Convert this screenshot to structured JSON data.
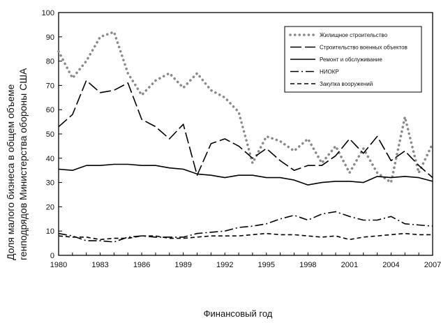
{
  "chart_data": {
    "type": "line",
    "title": "",
    "xlabel": "Финансовый год",
    "ylabel": [
      "Доля малого бизнеса в общем объеме",
      "генподрядов Министерства обороны США"
    ],
    "xlim": [
      1980,
      2007
    ],
    "ylim": [
      0,
      100
    ],
    "x_ticks": [
      "1980",
      "1983",
      "1986",
      "1989",
      "1992",
      "1995",
      "1998",
      "2001",
      "2004",
      "2007"
    ],
    "y_ticks": [
      "0",
      "10",
      "20",
      "30",
      "40",
      "50",
      "60",
      "70",
      "80",
      "90",
      "100"
    ],
    "grid": false,
    "legend_placement": "top-right",
    "x": [
      1980,
      1981,
      1982,
      1983,
      1984,
      1985,
      1986,
      1987,
      1988,
      1989,
      1990,
      1991,
      1992,
      1993,
      1994,
      1995,
      1996,
      1997,
      1998,
      1999,
      2000,
      2001,
      2002,
      2003,
      2004,
      2005,
      2006,
      2007
    ],
    "series": [
      {
        "name": "Жилищное строительство",
        "style": "dotted",
        "values": [
          84,
          73,
          80,
          90,
          92,
          75,
          66,
          72,
          75,
          69,
          75,
          68,
          65,
          59,
          38,
          49,
          47,
          43,
          48,
          38,
          45,
          34,
          44,
          34,
          30,
          57,
          34,
          46
        ]
      },
      {
        "name": "Строительство военных объектов",
        "style": "long-dash",
        "values": [
          53,
          58,
          72,
          67,
          68,
          71,
          56,
          53,
          48,
          54,
          33,
          46,
          48,
          45,
          40,
          44,
          39,
          35,
          37,
          37,
          41,
          48,
          42,
          49,
          39,
          43,
          37,
          32
        ]
      },
      {
        "name": "Ремонт и обслуживание",
        "style": "solid",
        "values": [
          35.5,
          35,
          37,
          37,
          37.5,
          37.5,
          37,
          37,
          36,
          35.5,
          33.5,
          33,
          32,
          33,
          33,
          32,
          32,
          31,
          29,
          30,
          30.5,
          30.5,
          30,
          32.5,
          32,
          32.5,
          32,
          30.5
        ]
      },
      {
        "name": "НИОКР",
        "style": "dash-dot",
        "values": [
          9,
          8,
          6,
          6,
          5.5,
          7.5,
          8,
          7.5,
          7.5,
          7.5,
          9,
          9.5,
          10,
          11.5,
          12,
          13,
          15,
          16.5,
          14.5,
          17,
          18,
          16,
          14.5,
          14.5,
          16,
          13,
          12.5,
          12
        ]
      },
      {
        "name": "Закупка вооружений",
        "style": "short-dash",
        "values": [
          8,
          7.5,
          7.5,
          6.5,
          7,
          7,
          8,
          8,
          7,
          7,
          7.5,
          8,
          8,
          8,
          8.5,
          9,
          8.5,
          8.5,
          8,
          7.5,
          8,
          6.5,
          7.5,
          8,
          8.5,
          9,
          8.5,
          8.5
        ]
      }
    ]
  }
}
